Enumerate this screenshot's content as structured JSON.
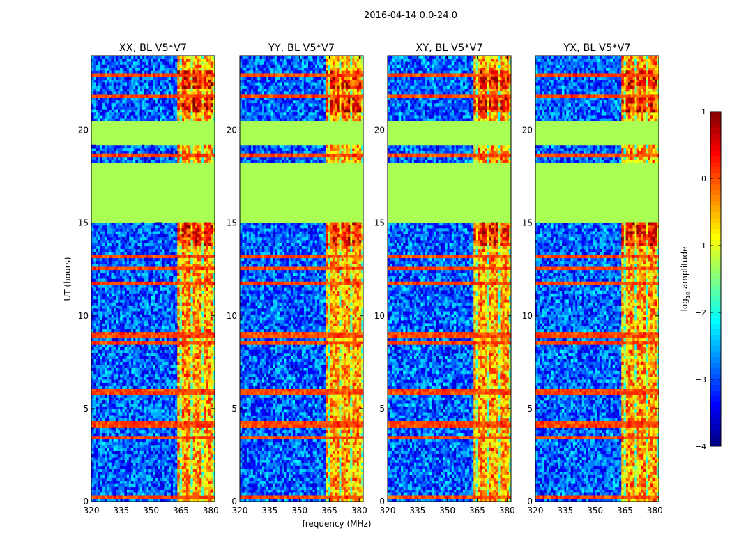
{
  "figure": {
    "suptitle": "2016-04-14 0.0-24.0",
    "xlabel": "frequency (MHz)",
    "ylabel": "UT (hours)"
  },
  "chart_data": {
    "type": "heatmap",
    "title": "2016-04-14 0.0-24.0",
    "xlabel": "frequency (MHz)",
    "ylabel": "UT (hours)",
    "xlim": [
      320,
      382
    ],
    "ylim": [
      0,
      24
    ],
    "x_ticks": [
      320,
      335,
      350,
      365,
      380
    ],
    "x_tick_labels": [
      "320",
      "335",
      "350",
      "365",
      "380"
    ],
    "y_ticks": [
      0,
      5,
      10,
      15,
      20
    ],
    "y_tick_labels": [
      "0",
      "5",
      "10",
      "15",
      "20"
    ],
    "panels": [
      {
        "name": "xx",
        "title": "XX, BL V5*V7"
      },
      {
        "name": "yy",
        "title": "YY, BL V5*V7"
      },
      {
        "name": "xy",
        "title": "XY, BL V5*V7"
      },
      {
        "name": "yx",
        "title": "YX, BL V5*V7"
      }
    ],
    "colorbar": {
      "label_main": "log",
      "label_sub": "10",
      "label_tail": " amplitude",
      "min": -4,
      "max": 1,
      "ticks": [
        -4,
        -3,
        -2,
        -1,
        0,
        1
      ],
      "tick_labels": [
        "−4",
        "−3",
        "−2",
        "−1",
        "0",
        "1"
      ],
      "colormap": "jet"
    },
    "flagged_ut_ranges": [
      [
        15.0,
        18.3
      ],
      [
        19.2,
        20.4
      ]
    ],
    "flagged_level": -1.3,
    "background_level_range": [
      -3.6,
      -2.2
    ],
    "rfi_band_mhz": [
      363,
      382
    ],
    "rfi_band_level_range": [
      -1.2,
      0.3
    ],
    "strong_rfi_ut_ranges": [
      [
        13.8,
        15.0
      ],
      [
        21.0,
        21.9
      ],
      [
        22.3,
        23.2
      ]
    ],
    "horizontal_rfi_ut": [
      0.3,
      3.5,
      4.1,
      4.3,
      5.8,
      6.0,
      8.5,
      8.9,
      9.1,
      11.8,
      12.5,
      13.2,
      18.7,
      21.9,
      23.0
    ]
  }
}
